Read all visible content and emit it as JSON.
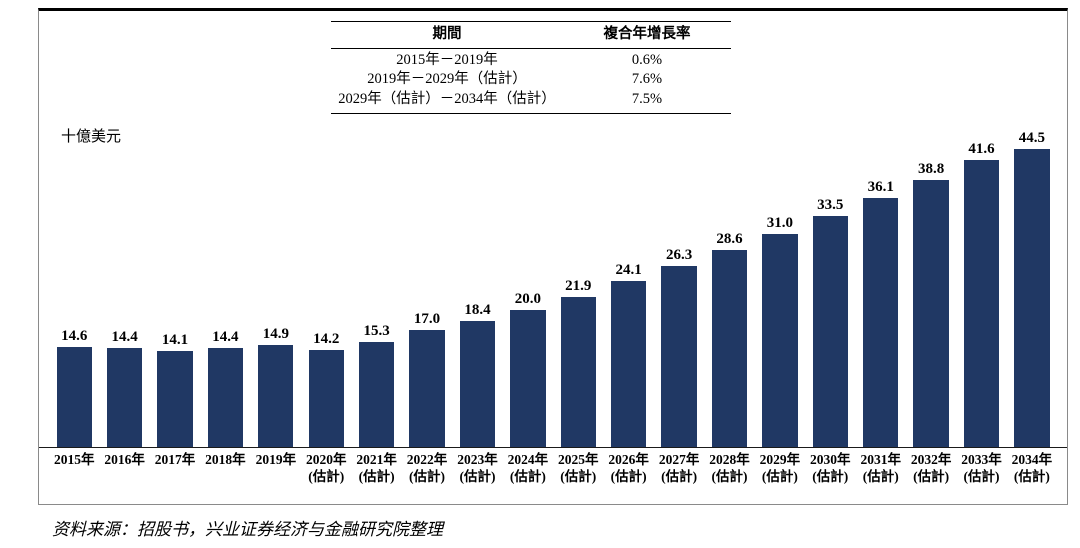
{
  "chart_data": {
    "type": "bar",
    "title": "",
    "unit_label": "十億美元",
    "categories": [
      "2015年",
      "2016年",
      "2017年",
      "2018年",
      "2019年",
      "2020年",
      "2021年",
      "2022年",
      "2023年",
      "2024年",
      "2025年",
      "2026年",
      "2027年",
      "2028年",
      "2029年",
      "2030年",
      "2031年",
      "2032年",
      "2033年",
      "2034年"
    ],
    "sub_labels": [
      "",
      "",
      "",
      "",
      "",
      "(估計)",
      "(估計)",
      "(估計)",
      "(估計)",
      "(估計)",
      "(估計)",
      "(估計)",
      "(估計)",
      "(估計)",
      "(估計)",
      "(估計)",
      "(估計)",
      "(估計)",
      "(估計)",
      "(估計)"
    ],
    "values": [
      14.6,
      14.4,
      14.1,
      14.4,
      14.9,
      14.2,
      15.3,
      17.0,
      18.4,
      20.0,
      21.9,
      24.1,
      26.3,
      28.6,
      31.0,
      33.5,
      36.1,
      38.8,
      41.6,
      44.5
    ],
    "ylim": [
      0,
      46
    ],
    "grid": false,
    "legend": "none",
    "bar_color": "#203864"
  },
  "cagr_table": {
    "headers": [
      "期間",
      "複合年增長率"
    ],
    "rows": [
      [
        "2015年－2019年",
        "0.6%"
      ],
      [
        "2019年－2029年（估計）",
        "7.6%"
      ],
      [
        "2029年（估計）－2034年（估計）",
        "7.5%"
      ]
    ]
  },
  "source_note": "资料来源：招股书，兴业证券经济与金融研究院整理"
}
